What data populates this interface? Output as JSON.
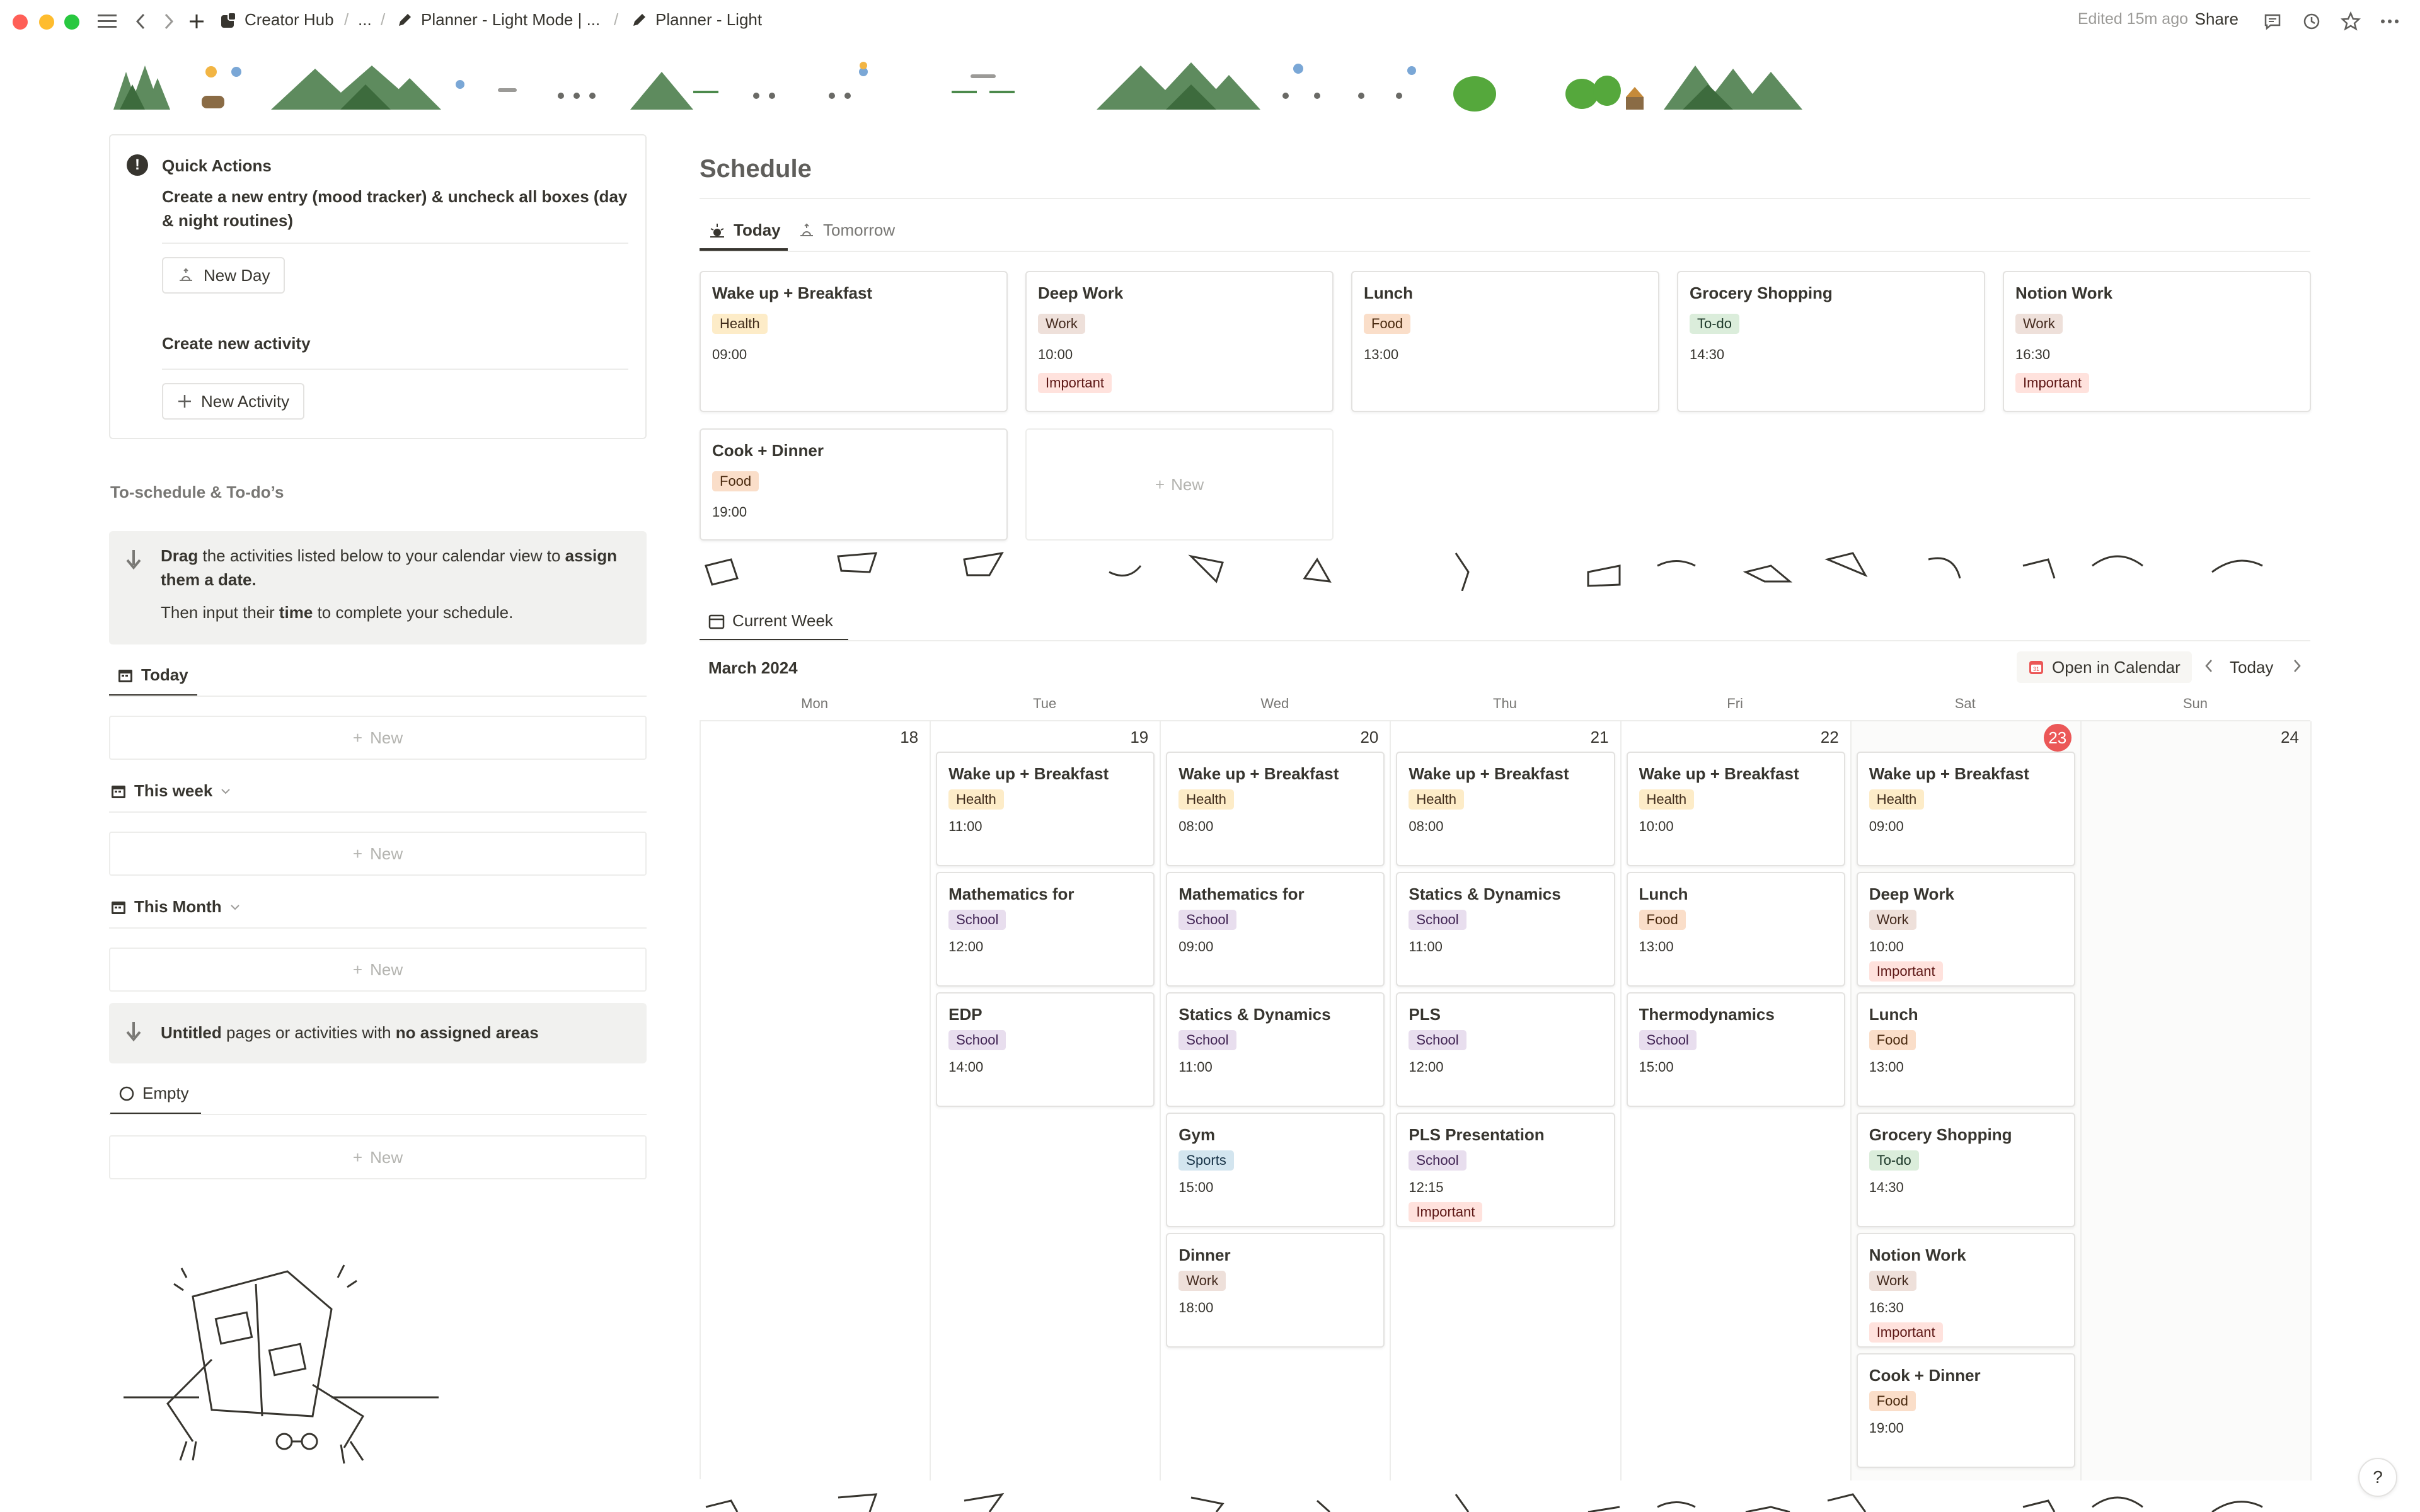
{
  "topbar": {
    "breadcrumbs": [
      "Creator Hub",
      "...",
      "Planner - Light Mode | ...",
      "Planner - Light"
    ],
    "edited": "Edited 15m ago",
    "share": "Share"
  },
  "quick_actions": {
    "title": "Quick Actions",
    "description": "Create a new entry (mood tracker) & uncheck all boxes (day & night routines)",
    "new_day_label": "New Day",
    "new_activity_heading": "Create new activity",
    "new_activity_label": "New Activity"
  },
  "to_schedule": {
    "heading": "To-schedule & To-do’s",
    "callout_drag": "Drag",
    "callout_mid": " the activities listed below to your calendar view to ",
    "callout_assign": "assign them a date.",
    "callout_then": "Then input their ",
    "callout_time": "time",
    "callout_end": " to complete your schedule.",
    "views": [
      {
        "label": "Today",
        "new": "New"
      },
      {
        "label": "This week",
        "new": "New"
      },
      {
        "label": "This Month",
        "new": "New"
      }
    ],
    "untitled_bold": "Untitled",
    "untitled_mid": " pages or activities with ",
    "untitled_bold2": "no assigned areas",
    "empty_label": "Empty",
    "empty_new": "New"
  },
  "schedule": {
    "title": "Schedule",
    "tabs": [
      "Today",
      "Tomorrow"
    ],
    "new_label": "New",
    "cards": [
      {
        "title": "Wake up + Breakfast",
        "tags": [
          "Health"
        ],
        "time": "09:00"
      },
      {
        "title": "Deep Work",
        "tags": [
          "Work"
        ],
        "time": "10:00",
        "extra": "Important"
      },
      {
        "title": "Lunch",
        "tags": [
          "Food"
        ],
        "time": "13:00"
      },
      {
        "title": "Grocery Shopping",
        "tags": [
          "To-do"
        ],
        "time": "14:30"
      },
      {
        "title": "Notion Work",
        "tags": [
          "Work"
        ],
        "time": "16:30",
        "extra": "Important"
      },
      {
        "title": "Cook + Dinner",
        "tags": [
          "Food"
        ],
        "time": "19:00"
      }
    ]
  },
  "calendar": {
    "tab": "Current Week",
    "month": "March 2024",
    "open_label": "Open in Calendar",
    "today_label": "Today",
    "dows": [
      "Mon",
      "Tue",
      "Wed",
      "Thu",
      "Fri",
      "Sat",
      "Sun"
    ],
    "days": [
      {
        "num": "18",
        "events": []
      },
      {
        "num": "19",
        "events": [
          {
            "title": "Wake up + Breakfast",
            "tag": "Health",
            "time": "11:00"
          },
          {
            "title": "Mathematics for",
            "tag": "School",
            "time": "12:00"
          },
          {
            "title": "EDP",
            "tag": "School",
            "time": "14:00"
          }
        ]
      },
      {
        "num": "20",
        "events": [
          {
            "title": "Wake up + Breakfast",
            "tag": "Health",
            "time": "08:00"
          },
          {
            "title": "Mathematics for",
            "tag": "School",
            "time": "09:00"
          },
          {
            "title": "Statics & Dynamics",
            "tag": "School",
            "time": "11:00"
          },
          {
            "title": "Gym",
            "tag": "Sports",
            "time": "15:00"
          },
          {
            "title": "Dinner",
            "tag": "Work",
            "time": "18:00"
          }
        ]
      },
      {
        "num": "21",
        "events": [
          {
            "title": "Wake up + Breakfast",
            "tag": "Health",
            "time": "08:00"
          },
          {
            "title": "Statics & Dynamics",
            "tag": "School",
            "time": "11:00"
          },
          {
            "title": "PLS",
            "tag": "School",
            "time": "12:00"
          },
          {
            "title": "PLS Presentation",
            "tag": "School",
            "time": "12:15",
            "extra": "Important"
          }
        ]
      },
      {
        "num": "22",
        "events": [
          {
            "title": "Wake up + Breakfast",
            "tag": "Health",
            "time": "10:00"
          },
          {
            "title": "Lunch",
            "tag": "Food",
            "time": "13:00"
          },
          {
            "title": "Thermodynamics",
            "tag": "School",
            "time": "15:00"
          }
        ]
      },
      {
        "num": "23",
        "today": true,
        "events": [
          {
            "title": "Wake up + Breakfast",
            "tag": "Health",
            "time": "09:00"
          },
          {
            "title": "Deep Work",
            "tag": "Work",
            "time": "10:00",
            "extra": "Important"
          },
          {
            "title": "Lunch",
            "tag": "Food",
            "time": "13:00"
          },
          {
            "title": "Grocery Shopping",
            "tag": "To-do",
            "time": "14:30"
          },
          {
            "title": "Notion Work",
            "tag": "Work",
            "time": "16:30",
            "extra": "Important"
          },
          {
            "title": "Cook + Dinner",
            "tag": "Food",
            "time": "19:00"
          }
        ]
      },
      {
        "num": "24",
        "events": []
      }
    ]
  },
  "help": "?",
  "colors": {
    "today_badge": "#eb5757",
    "callout_bg": "#f1f1ef"
  }
}
